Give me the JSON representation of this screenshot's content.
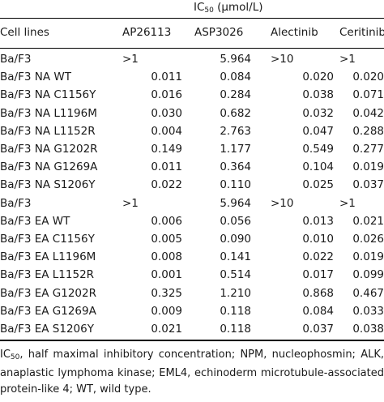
{
  "header": {
    "ic_prefix": "IC",
    "ic_sub": "50",
    "ic_unit": " (μmol/L)",
    "col_cell_lines": "Cell lines",
    "col_ap": "AP26113",
    "col_asp": "ASP3026",
    "col_al": "Alectinib",
    "col_ce": "Ceritinib"
  },
  "rows": [
    {
      "label": "Ba/F3",
      "ap": ">1",
      "asp": "5.964",
      "al": ">10",
      "ce": ">1"
    },
    {
      "label": "Ba/F3 NA WT",
      "ap": "0.011",
      "asp": "0.084",
      "al": "0.020",
      "ce": "0.020"
    },
    {
      "label": "Ba/F3 NA C1156Y",
      "ap": "0.016",
      "asp": "0.284",
      "al": "0.038",
      "ce": "0.071"
    },
    {
      "label": "Ba/F3 NA L1196M",
      "ap": "0.030",
      "asp": "0.682",
      "al": "0.032",
      "ce": "0.042"
    },
    {
      "label": "Ba/F3 NA L1152R",
      "ap": "0.004",
      "asp": "2.763",
      "al": "0.047",
      "ce": "0.288"
    },
    {
      "label": "Ba/F3 NA G1202R",
      "ap": "0.149",
      "asp": "1.177",
      "al": "0.549",
      "ce": "0.277"
    },
    {
      "label": "Ba/F3 NA G1269A",
      "ap": "0.011",
      "asp": "0.364",
      "al": "0.104",
      "ce": "0.019"
    },
    {
      "label": "Ba/F3 NA S1206Y",
      "ap": "0.022",
      "asp": "0.110",
      "al": "0.025",
      "ce": "0.037"
    },
    {
      "label": "Ba/F3",
      "ap": ">1",
      "asp": "5.964",
      "al": ">10",
      "ce": ">1"
    },
    {
      "label": "Ba/F3 EA WT",
      "ap": "0.006",
      "asp": "0.056",
      "al": "0.013",
      "ce": "0.021"
    },
    {
      "label": "Ba/F3 EA C1156Y",
      "ap": "0.005",
      "asp": "0.090",
      "al": "0.010",
      "ce": "0.026"
    },
    {
      "label": "Ba/F3 EA L1196M",
      "ap": "0.008",
      "asp": "0.141",
      "al": "0.022",
      "ce": "0.019"
    },
    {
      "label": "Ba/F3 EA L1152R",
      "ap": "0.001",
      "asp": "0.514",
      "al": "0.017",
      "ce": "0.099"
    },
    {
      "label": "Ba/F3 EA G1202R",
      "ap": "0.325",
      "asp": "1.210",
      "al": "0.868",
      "ce": "0.467"
    },
    {
      "label": "Ba/F3 EA G1269A",
      "ap": "0.009",
      "asp": "0.118",
      "al": "0.084",
      "ce": "0.033"
    },
    {
      "label": "Ba/F3 EA S1206Y",
      "ap": "0.021",
      "asp": "0.118",
      "al": "0.037",
      "ce": "0.038"
    }
  ],
  "footnote": {
    "ic_prefix": "IC",
    "ic_sub": "50",
    "text": ", half maximal inhibitory concentration; NPM, nucleophosmin; ALK, anaplastic lymphoma kinase; EML4, echinoderm microtubule-associated protein-like 4; WT, wild type."
  }
}
